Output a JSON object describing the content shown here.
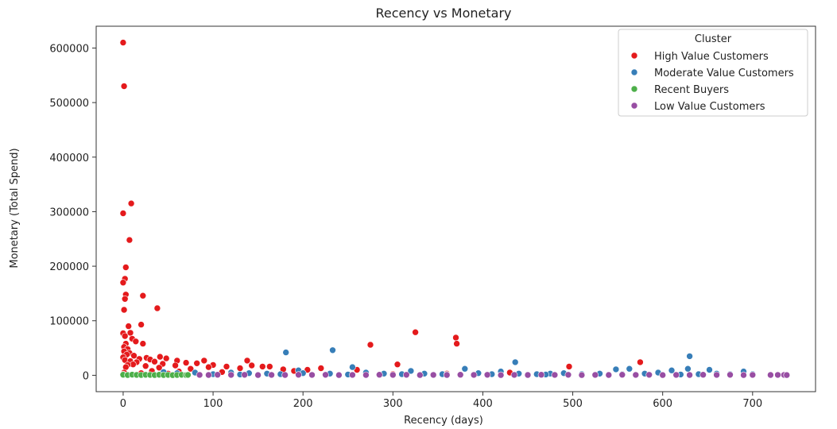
{
  "chart_data": {
    "type": "scatter",
    "title": "Recency vs Monetary",
    "xlabel": "Recency (days)",
    "ylabel": "Monetary (Total Spend)",
    "xlim": [
      -30,
      770
    ],
    "ylim": [
      -30000,
      640000
    ],
    "xticks": [
      0,
      100,
      200,
      300,
      400,
      500,
      600,
      700
    ],
    "yticks": [
      0,
      100000,
      200000,
      300000,
      400000,
      500000,
      600000
    ],
    "grid": false,
    "legend": {
      "title": "Cluster",
      "placement": "top-right"
    },
    "series": [
      {
        "name": "High Value Customers",
        "color": "#e41a1c",
        "points": [
          [
            0,
            610000
          ],
          [
            1,
            530000
          ],
          [
            9,
            315000
          ],
          [
            0,
            297000
          ],
          [
            7,
            248000
          ],
          [
            3,
            198000
          ],
          [
            2,
            177000
          ],
          [
            0,
            170000
          ],
          [
            22,
            146000
          ],
          [
            3,
            148000
          ],
          [
            2,
            140000
          ],
          [
            38,
            123000
          ],
          [
            1,
            120000
          ],
          [
            20,
            93000
          ],
          [
            6,
            90000
          ],
          [
            8,
            78000
          ],
          [
            0,
            77000
          ],
          [
            2,
            72000
          ],
          [
            10,
            67000
          ],
          [
            14,
            62000
          ],
          [
            3,
            58000
          ],
          [
            22,
            58000
          ],
          [
            1,
            52000
          ],
          [
            5,
            48000
          ],
          [
            1,
            44000
          ],
          [
            7,
            41000
          ],
          [
            4,
            38000
          ],
          [
            12,
            36000
          ],
          [
            41,
            34000
          ],
          [
            0,
            33000
          ],
          [
            26,
            32000
          ],
          [
            48,
            31000
          ],
          [
            18,
            30000
          ],
          [
            30,
            29000
          ],
          [
            2,
            28000
          ],
          [
            60,
            27000
          ],
          [
            90,
            27000
          ],
          [
            138,
            27000
          ],
          [
            8,
            26000
          ],
          [
            35,
            25000
          ],
          [
            15,
            24000
          ],
          [
            70,
            23000
          ],
          [
            82,
            22000
          ],
          [
            44,
            21000
          ],
          [
            11,
            20000
          ],
          [
            5,
            19000
          ],
          [
            100,
            19000
          ],
          [
            58,
            18000
          ],
          [
            143,
            18000
          ],
          [
            25,
            17000
          ],
          [
            115,
            16000
          ],
          [
            155,
            16000
          ],
          [
            163,
            16000
          ],
          [
            3,
            15000
          ],
          [
            95,
            15000
          ],
          [
            40,
            14000
          ],
          [
            130,
            13000
          ],
          [
            220,
            13000
          ],
          [
            75,
            12000
          ],
          [
            178,
            11000
          ],
          [
            205,
            10000
          ],
          [
            260,
            10000
          ],
          [
            190,
            8000
          ],
          [
            32,
            8000
          ],
          [
            62,
            7000
          ],
          [
            110,
            6000
          ],
          [
            1,
            5000
          ],
          [
            20,
            4000
          ],
          [
            50,
            3000
          ],
          [
            0,
            2000
          ],
          [
            325,
            79000
          ],
          [
            370,
            69000
          ],
          [
            371,
            58000
          ],
          [
            275,
            56000
          ],
          [
            305,
            20000
          ],
          [
            496,
            16000
          ],
          [
            575,
            24000
          ],
          [
            430,
            5000
          ],
          [
            360,
            3000
          ],
          [
            300,
            2000
          ]
        ]
      },
      {
        "name": "Moderate Value Customers",
        "color": "#377eb8",
        "points": [
          [
            181,
            42000
          ],
          [
            233,
            46000
          ],
          [
            630,
            35000
          ],
          [
            436,
            24000
          ],
          [
            255,
            15000
          ],
          [
            380,
            12000
          ],
          [
            548,
            11000
          ],
          [
            652,
            10000
          ],
          [
            563,
            12000
          ],
          [
            628,
            12000
          ],
          [
            195,
            9000
          ],
          [
            320,
            8000
          ],
          [
            420,
            7000
          ],
          [
            690,
            7000
          ],
          [
            610,
            9000
          ],
          [
            45,
            6000
          ],
          [
            60,
            4000
          ],
          [
            80,
            5000
          ],
          [
            120,
            5000
          ],
          [
            140,
            4000
          ],
          [
            160,
            3000
          ],
          [
            200,
            4000
          ],
          [
            230,
            3000
          ],
          [
            270,
            5000
          ],
          [
            290,
            3000
          ],
          [
            310,
            2000
          ],
          [
            335,
            3000
          ],
          [
            355,
            2000
          ],
          [
            395,
            4000
          ],
          [
            410,
            2000
          ],
          [
            440,
            3000
          ],
          [
            460,
            2000
          ],
          [
            475,
            3000
          ],
          [
            490,
            4000
          ],
          [
            510,
            2000
          ],
          [
            530,
            3000
          ],
          [
            555,
            2000
          ],
          [
            580,
            3000
          ],
          [
            595,
            5000
          ],
          [
            640,
            2000
          ],
          [
            660,
            3000
          ],
          [
            675,
            2000
          ],
          [
            700,
            2000
          ],
          [
            100,
            2000
          ],
          [
            130,
            1500
          ],
          [
            175,
            2000
          ],
          [
            250,
            1500
          ],
          [
            360,
            1500
          ],
          [
            470,
            1500
          ],
          [
            620,
            1500
          ]
        ]
      },
      {
        "name": "Recent Buyers",
        "color": "#4daf4a",
        "points": [
          [
            0,
            1000
          ],
          [
            5,
            500
          ],
          [
            10,
            1200
          ],
          [
            15,
            800
          ],
          [
            20,
            600
          ],
          [
            25,
            900
          ],
          [
            30,
            700
          ],
          [
            35,
            400
          ],
          [
            40,
            1000
          ],
          [
            45,
            500
          ],
          [
            50,
            800
          ],
          [
            55,
            300
          ],
          [
            60,
            600
          ],
          [
            65,
            900
          ],
          [
            70,
            400
          ],
          [
            72,
            700
          ]
        ]
      },
      {
        "name": "Low Value Customers",
        "color": "#984ea3",
        "points": [
          [
            85,
            800
          ],
          [
            95,
            600
          ],
          [
            105,
            1000
          ],
          [
            120,
            700
          ],
          [
            135,
            900
          ],
          [
            150,
            500
          ],
          [
            165,
            800
          ],
          [
            180,
            600
          ],
          [
            195,
            1000
          ],
          [
            210,
            700
          ],
          [
            225,
            900
          ],
          [
            240,
            500
          ],
          [
            255,
            800
          ],
          [
            270,
            600
          ],
          [
            285,
            1000
          ],
          [
            300,
            700
          ],
          [
            315,
            900
          ],
          [
            330,
            500
          ],
          [
            345,
            800
          ],
          [
            360,
            600
          ],
          [
            375,
            1000
          ],
          [
            390,
            700
          ],
          [
            405,
            900
          ],
          [
            420,
            500
          ],
          [
            435,
            800
          ],
          [
            450,
            600
          ],
          [
            465,
            1000
          ],
          [
            480,
            700
          ],
          [
            495,
            900
          ],
          [
            510,
            500
          ],
          [
            525,
            800
          ],
          [
            540,
            600
          ],
          [
            555,
            1000
          ],
          [
            570,
            700
          ],
          [
            585,
            900
          ],
          [
            600,
            500
          ],
          [
            615,
            800
          ],
          [
            630,
            600
          ],
          [
            645,
            1000
          ],
          [
            660,
            700
          ],
          [
            675,
            900
          ],
          [
            690,
            500
          ],
          [
            700,
            800
          ],
          [
            720,
            600
          ],
          [
            728,
            700
          ],
          [
            735,
            800
          ],
          [
            738,
            500
          ]
        ]
      }
    ]
  }
}
